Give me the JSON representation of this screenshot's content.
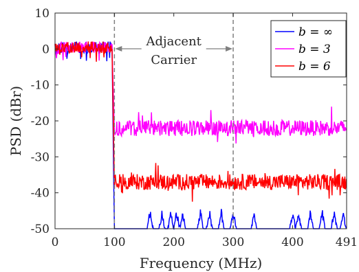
{
  "chart_data": {
    "type": "line",
    "xlabel": "Frequency (MHz)",
    "ylabel": "PSD (dBr)",
    "xlim": [
      0,
      491
    ],
    "ylim": [
      -50,
      10
    ],
    "xticks": [
      0,
      100,
      200,
      300,
      400,
      491
    ],
    "yticks": [
      10,
      0,
      -10,
      -20,
      -30,
      -40,
      -50
    ],
    "grid": false,
    "legend_position": "top-right",
    "annotation": {
      "line1": "Adjacent",
      "line2": "Carrier",
      "x_start": 100,
      "x_end": 300
    },
    "markers": [
      {
        "x": 100,
        "style": "dashed"
      },
      {
        "x": 300,
        "style": "dashed"
      }
    ],
    "series": [
      {
        "name": "b = ∞",
        "color": "#0000ff",
        "inband_level": 0.5,
        "floor_level": -50,
        "burst_centers": [
          160,
          180,
          195,
          205,
          215,
          245,
          260,
          280,
          300,
          335,
          400,
          410,
          430,
          450,
          470,
          485
        ]
      },
      {
        "name": "b = 3",
        "color": "#ff00ff",
        "inband_level": 0.5,
        "floor_level": -22
      },
      {
        "name": "b = 6",
        "color": "#ff0000",
        "inband_level": 0.5,
        "floor_level": -37
      }
    ]
  }
}
